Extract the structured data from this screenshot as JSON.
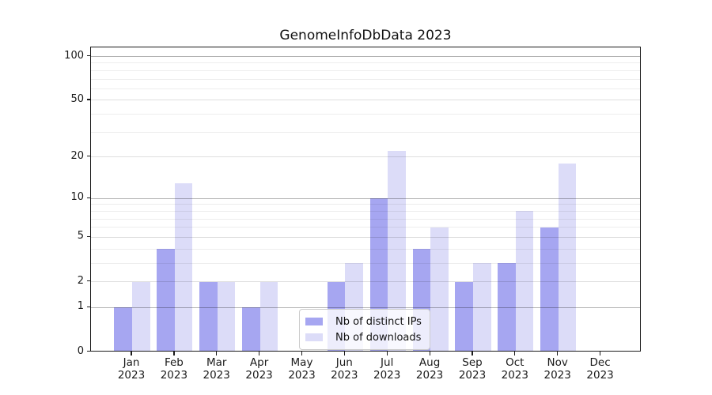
{
  "title": "GenomeInfoDbData 2023",
  "colors": {
    "ips_bar": "#a6a6f1",
    "downloads_bar": "#dcdcf8",
    "grid_major": "rgba(0,0,0,0.30)",
    "grid_mid": "rgba(0,0,0,0.13)",
    "grid_minor": "rgba(0,0,0,0.07)",
    "axis": "#1a1a1a",
    "legend_border": "#cccccc"
  },
  "legend": {
    "items": [
      {
        "label": "Nb of distinct IPs",
        "color": "#a6a6f1"
      },
      {
        "label": "Nb of downloads",
        "color": "#dcdcf8"
      }
    ]
  },
  "chart_data": {
    "type": "bar",
    "title": "GenomeInfoDbData 2023",
    "categories": [
      {
        "month": "Jan",
        "year": "2023"
      },
      {
        "month": "Feb",
        "year": "2023"
      },
      {
        "month": "Mar",
        "year": "2023"
      },
      {
        "month": "Apr",
        "year": "2023"
      },
      {
        "month": "May",
        "year": "2023"
      },
      {
        "month": "Jun",
        "year": "2023"
      },
      {
        "month": "Jul",
        "year": "2023"
      },
      {
        "month": "Aug",
        "year": "2023"
      },
      {
        "month": "Sep",
        "year": "2023"
      },
      {
        "month": "Oct",
        "year": "2023"
      },
      {
        "month": "Nov",
        "year": "2023"
      },
      {
        "month": "Dec",
        "year": "2023"
      }
    ],
    "series": [
      {
        "name": "Nb of distinct IPs",
        "color": "#a6a6f1",
        "values": [
          1,
          4,
          2,
          1,
          0,
          2,
          10,
          4,
          2,
          3,
          6,
          0
        ]
      },
      {
        "name": "Nb of downloads",
        "color": "#dcdcf8",
        "values": [
          2,
          13,
          2,
          2,
          0,
          3,
          22,
          6,
          3,
          8,
          18,
          0
        ]
      }
    ],
    "yscale": "log1p",
    "ylim": [
      0,
      100
    ],
    "yticks": [
      0,
      1,
      2,
      5,
      10,
      20,
      50,
      100
    ],
    "grid": {
      "major": [
        1,
        10,
        100
      ],
      "mid": [
        2,
        5,
        20,
        50
      ],
      "minor": [
        3,
        4,
        6,
        7,
        8,
        9,
        30,
        40,
        60,
        70,
        80,
        90
      ]
    },
    "legend_position": "lower center-left",
    "xlabel": "",
    "ylabel": ""
  }
}
